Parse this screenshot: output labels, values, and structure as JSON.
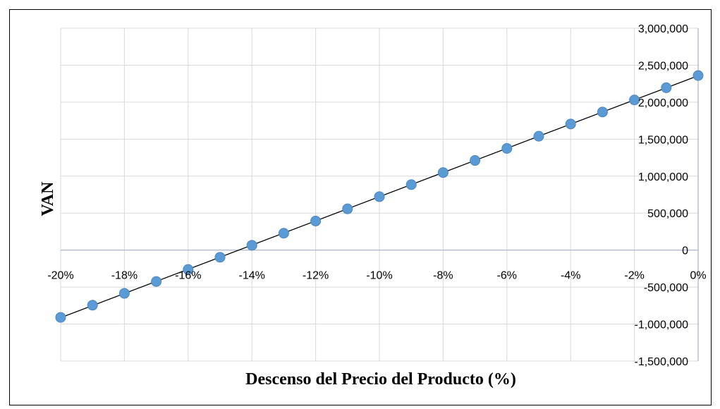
{
  "chart_data": {
    "type": "scatter",
    "title": "",
    "xlabel": "Descenso del Precio del Producto (%)",
    "ylabel": "VAN",
    "x": [
      -20,
      -19,
      -18,
      -17,
      -16,
      -15,
      -14,
      -13,
      -12,
      -11,
      -10,
      -9,
      -8,
      -7,
      -6,
      -5,
      -4,
      -3,
      -2,
      -1,
      0
    ],
    "series": [
      {
        "values": [
          -910000,
          -745000,
          -585000,
          -425000,
          -262000,
          -97000,
          65000,
          228000,
          393000,
          558000,
          722000,
          885000,
          1048000,
          1212000,
          1375000,
          1540000,
          1705000,
          1867000,
          2030000,
          2195000,
          2360000
        ]
      }
    ],
    "trendline": {
      "type": "linear",
      "color": "#000000"
    },
    "xlim": [
      -20,
      0
    ],
    "ylim": [
      -1500000,
      3000000
    ],
    "x_ticks": [
      "-20%",
      "-18%",
      "-16%",
      "-14%",
      "-12%",
      "-10%",
      "-8%",
      "-6%",
      "-4%",
      "-2%",
      "0%"
    ],
    "y_ticks": [
      "-1,500,000",
      "-1,000,000",
      "-500,000",
      "0",
      "500,000",
      "1,000,000",
      "1,500,000",
      "2,000,000",
      "2,500,000",
      "3,000,000"
    ],
    "y_axis_side": "right",
    "grid": true,
    "legend": "none",
    "marker_color": "#5b9bd5",
    "grid_color": "#d9d9d9",
    "axis_color": "#a6b4c8"
  }
}
